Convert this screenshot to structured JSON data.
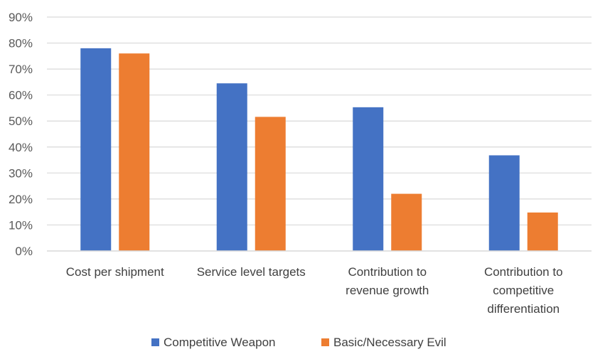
{
  "chart_data": {
    "type": "bar",
    "categories": [
      [
        "Cost per shipment"
      ],
      [
        "Service level targets"
      ],
      [
        "Contribution to",
        "revenue growth"
      ],
      [
        "Contribution to",
        "competitive",
        "differentiation"
      ]
    ],
    "series": [
      {
        "name": "Competitive Weapon",
        "values": [
          78,
          64.5,
          55.3,
          36.8
        ],
        "color": "#4472C4"
      },
      {
        "name": "Basic/Necessary Evil",
        "values": [
          76,
          51.6,
          22,
          14.8
        ],
        "color": "#ED7D31"
      }
    ],
    "ylim": [
      0,
      90
    ],
    "yticks": [
      "0%",
      "10%",
      "20%",
      "30%",
      "40%",
      "50%",
      "60%",
      "70%",
      "80%",
      "90%"
    ],
    "grid": true,
    "legend": "bottom"
  }
}
